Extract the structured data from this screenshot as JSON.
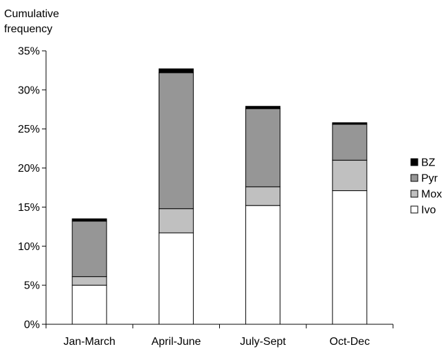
{
  "chart_data": {
    "type": "bar",
    "stacked": true,
    "ylabel": [
      "Cumulative",
      "frequency"
    ],
    "xlabel": "",
    "categories": [
      "Jan-March",
      "April-June",
      "July-Sept",
      "Oct-Dec"
    ],
    "ylim": [
      0,
      35
    ],
    "yticks": [
      "0%",
      "5%",
      "10%",
      "15%",
      "20%",
      "25%",
      "30%",
      "35%"
    ],
    "grid": false,
    "legend": "right",
    "series": [
      {
        "name": "Ivo",
        "color": "#ffffff",
        "values": [
          5.0,
          11.7,
          15.2,
          17.1
        ]
      },
      {
        "name": "Mox",
        "color": "#c0c0c0",
        "values": [
          1.1,
          3.1,
          2.4,
          3.9
        ]
      },
      {
        "name": "Pyr",
        "color": "#969696",
        "values": [
          7.1,
          17.4,
          10.0,
          4.6
        ]
      },
      {
        "name": "BZ",
        "color": "#000000",
        "values": [
          0.3,
          0.5,
          0.3,
          0.2
        ]
      }
    ]
  }
}
